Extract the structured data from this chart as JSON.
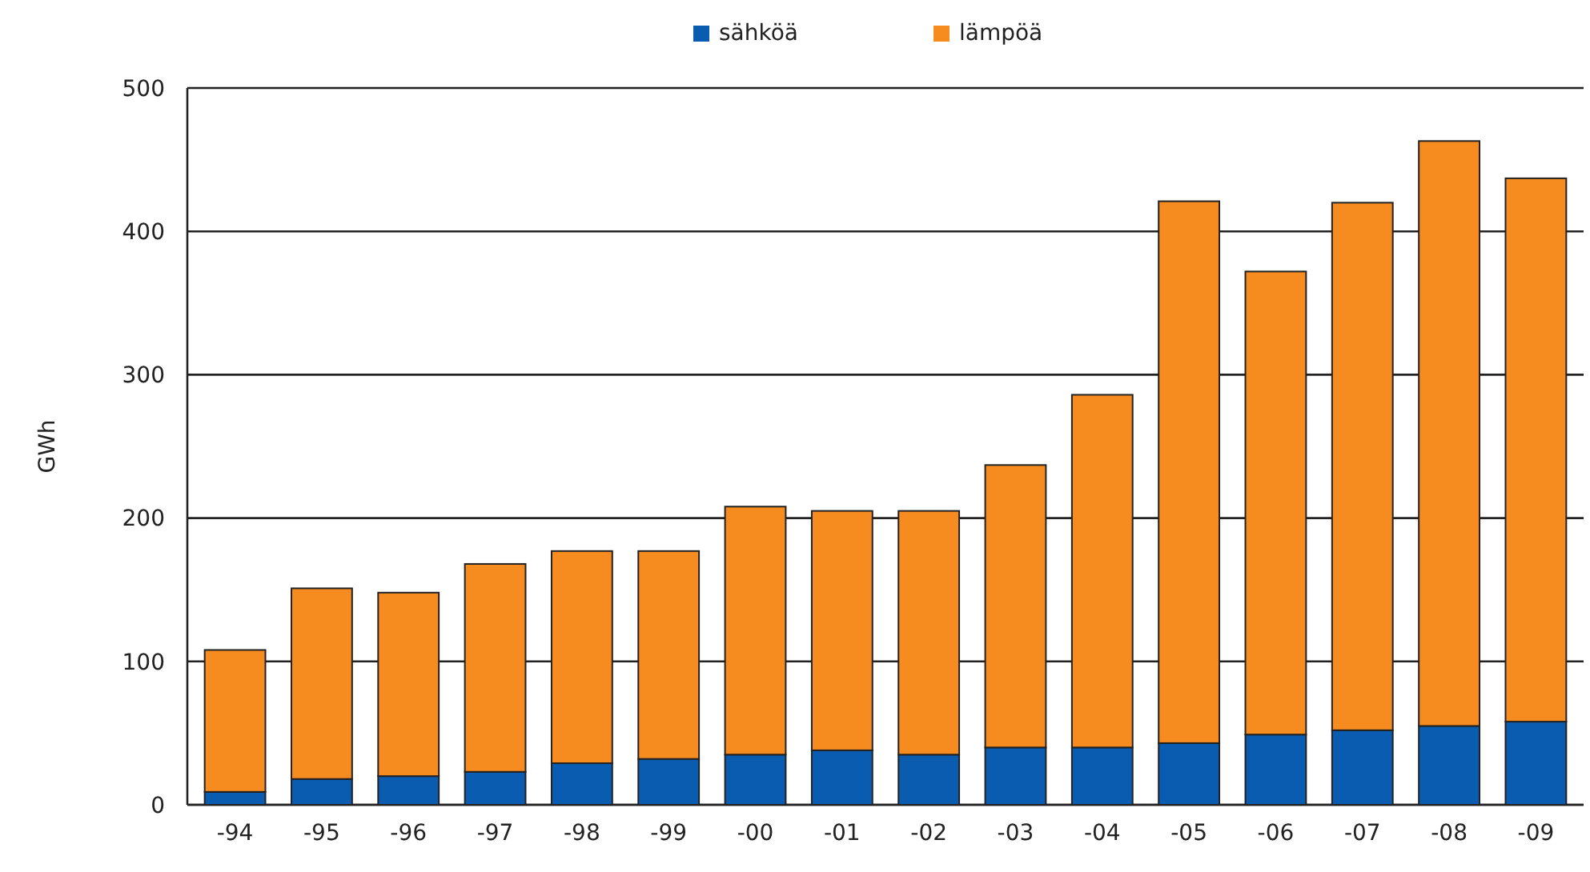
{
  "chart_data": {
    "type": "bar",
    "stacked": true,
    "ylabel": "GWh",
    "categories": [
      "-94",
      "-95",
      "-96",
      "-97",
      "-98",
      "-99",
      "-00",
      "-01",
      "-02",
      "-03",
      "-04",
      "-05",
      "-06",
      "-07",
      "-08",
      "-09"
    ],
    "series": [
      {
        "name": "sähköä",
        "color": "#0a5cb0",
        "values": [
          9,
          18,
          20,
          23,
          29,
          32,
          35,
          38,
          35,
          40,
          40,
          43,
          49,
          52,
          55,
          58
        ]
      },
      {
        "name": "lämpöä",
        "color": "#f68b1f",
        "values": [
          99,
          133,
          128,
          145,
          148,
          145,
          173,
          167,
          170,
          197,
          246,
          378,
          323,
          368,
          408,
          379
        ]
      }
    ],
    "ylim": [
      0,
      500
    ],
    "yticks": [
      0,
      100,
      200,
      300,
      400,
      500
    ],
    "grid": "y",
    "legend": "top"
  }
}
